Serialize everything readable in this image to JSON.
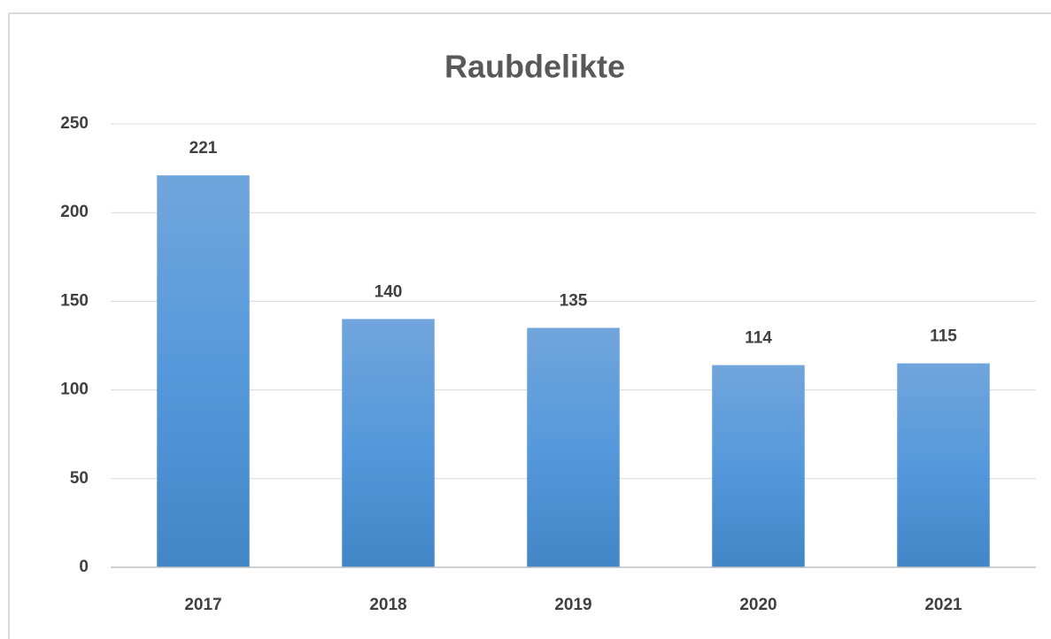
{
  "chart_data": {
    "type": "bar",
    "title": "Raubdelikte",
    "categories": [
      "2017",
      "2018",
      "2019",
      "2020",
      "2021"
    ],
    "values": [
      221,
      140,
      135,
      114,
      115
    ],
    "color": "#5b9bd5",
    "ylim": [
      0,
      250
    ],
    "yticks": [
      0,
      50,
      100,
      150,
      200,
      250
    ],
    "grid": true
  }
}
